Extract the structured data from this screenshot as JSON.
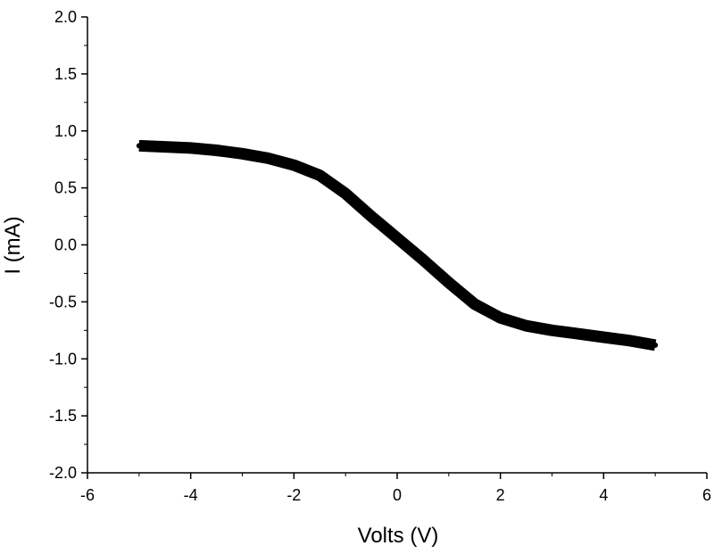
{
  "chart_data": {
    "type": "line",
    "title": "",
    "xlabel": "Volts (V)",
    "ylabel": "I (mA)",
    "xlim": [
      -6,
      6
    ],
    "ylim": [
      -2.0,
      2.0
    ],
    "x_ticks": [
      -6,
      -4,
      -2,
      0,
      2,
      4,
      6
    ],
    "x_tick_labels": [
      "-6",
      "-4",
      "-2",
      "0",
      "2",
      "4",
      "6"
    ],
    "y_ticks": [
      -2.0,
      -1.5,
      -1.0,
      -0.5,
      0.0,
      0.5,
      1.0,
      1.5,
      2.0
    ],
    "y_tick_labels": [
      "-2.0",
      "-1.5",
      "-1.0",
      "-0.5",
      "0.0",
      "0.5",
      "1.0",
      "1.5",
      "2.0"
    ],
    "grid": false,
    "series": [
      {
        "color": "#000000",
        "x": [
          -5.0,
          -4.5,
          -4.0,
          -3.5,
          -3.0,
          -2.5,
          -2.0,
          -1.5,
          -1.0,
          -0.5,
          0.0,
          0.5,
          1.0,
          1.5,
          2.0,
          2.5,
          3.0,
          3.5,
          4.0,
          4.5,
          5.0
        ],
        "y": [
          0.87,
          0.86,
          0.85,
          0.83,
          0.8,
          0.76,
          0.7,
          0.61,
          0.45,
          0.25,
          0.06,
          -0.13,
          -0.33,
          -0.52,
          -0.64,
          -0.71,
          -0.75,
          -0.78,
          -0.81,
          -0.84,
          -0.88
        ]
      }
    ]
  }
}
